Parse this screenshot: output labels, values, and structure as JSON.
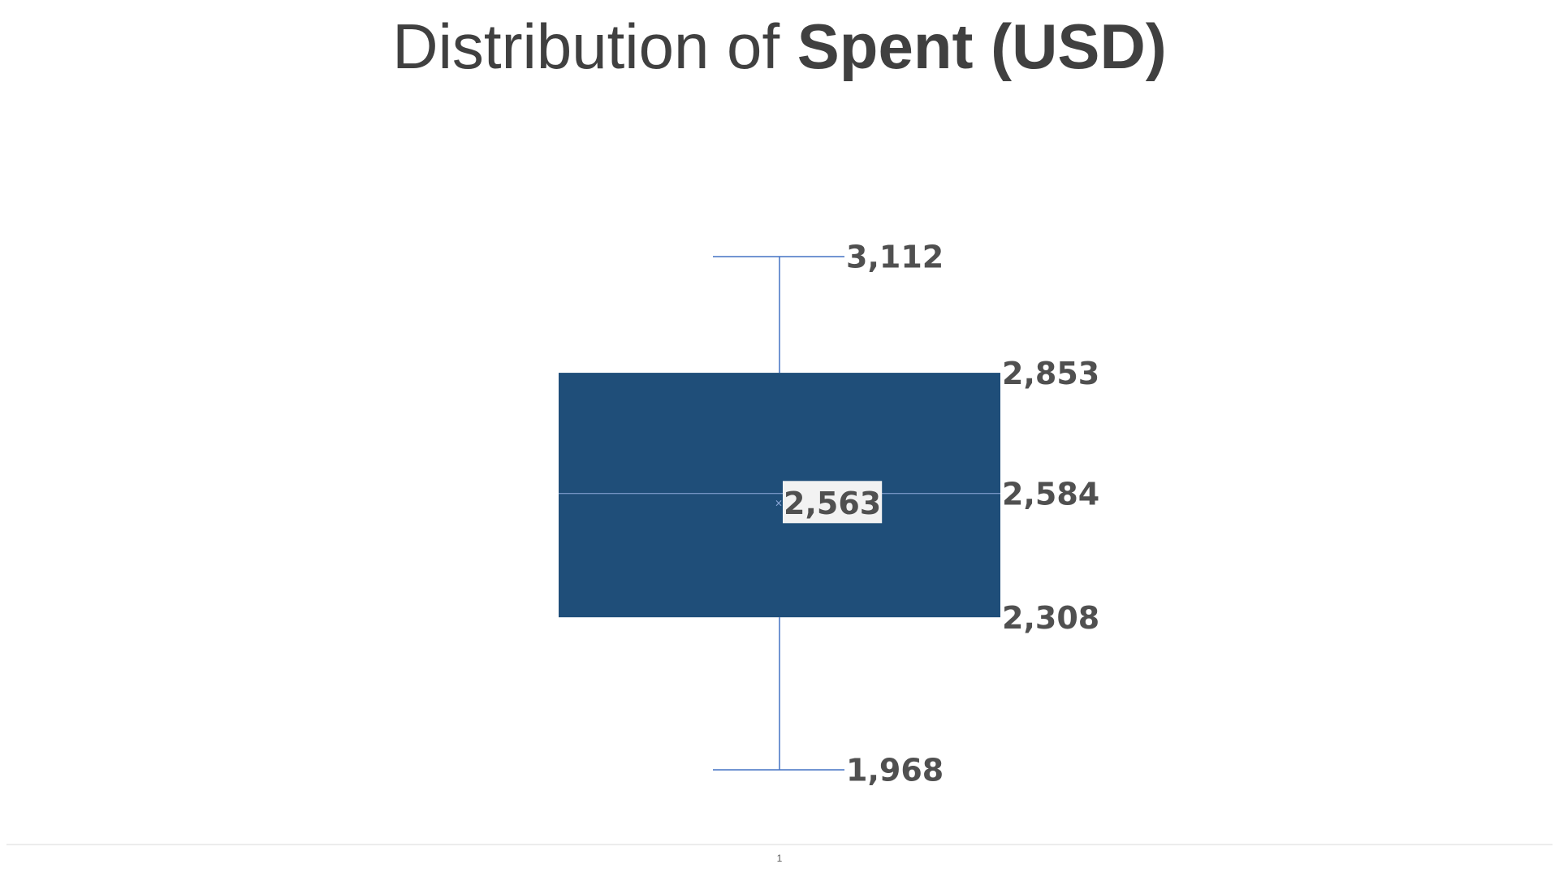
{
  "chart_data": {
    "type": "boxplot",
    "title": "Distribution of Spent (USD)",
    "title_parts": {
      "regular": "Distribution of ",
      "bold": "Spent (USD)"
    },
    "categories": [
      "1"
    ],
    "stats": {
      "min": 1968,
      "q1": 2308,
      "median": 2584,
      "mean": 2563,
      "q3": 2853,
      "max": 3112
    },
    "labels": {
      "min": "1,968",
      "q1": "2,308",
      "median": "2,584",
      "mean": "2,563",
      "q3": "2,853",
      "max": "3,112"
    },
    "xlabel": "",
    "ylabel": "",
    "legend": "none",
    "grid": false,
    "colors": {
      "box": "#1F4E79",
      "whisker": "#4472C4",
      "median_line": "#8FAADC",
      "label": "#505050",
      "title": "#404040",
      "axis": "#D9D9D9"
    }
  }
}
